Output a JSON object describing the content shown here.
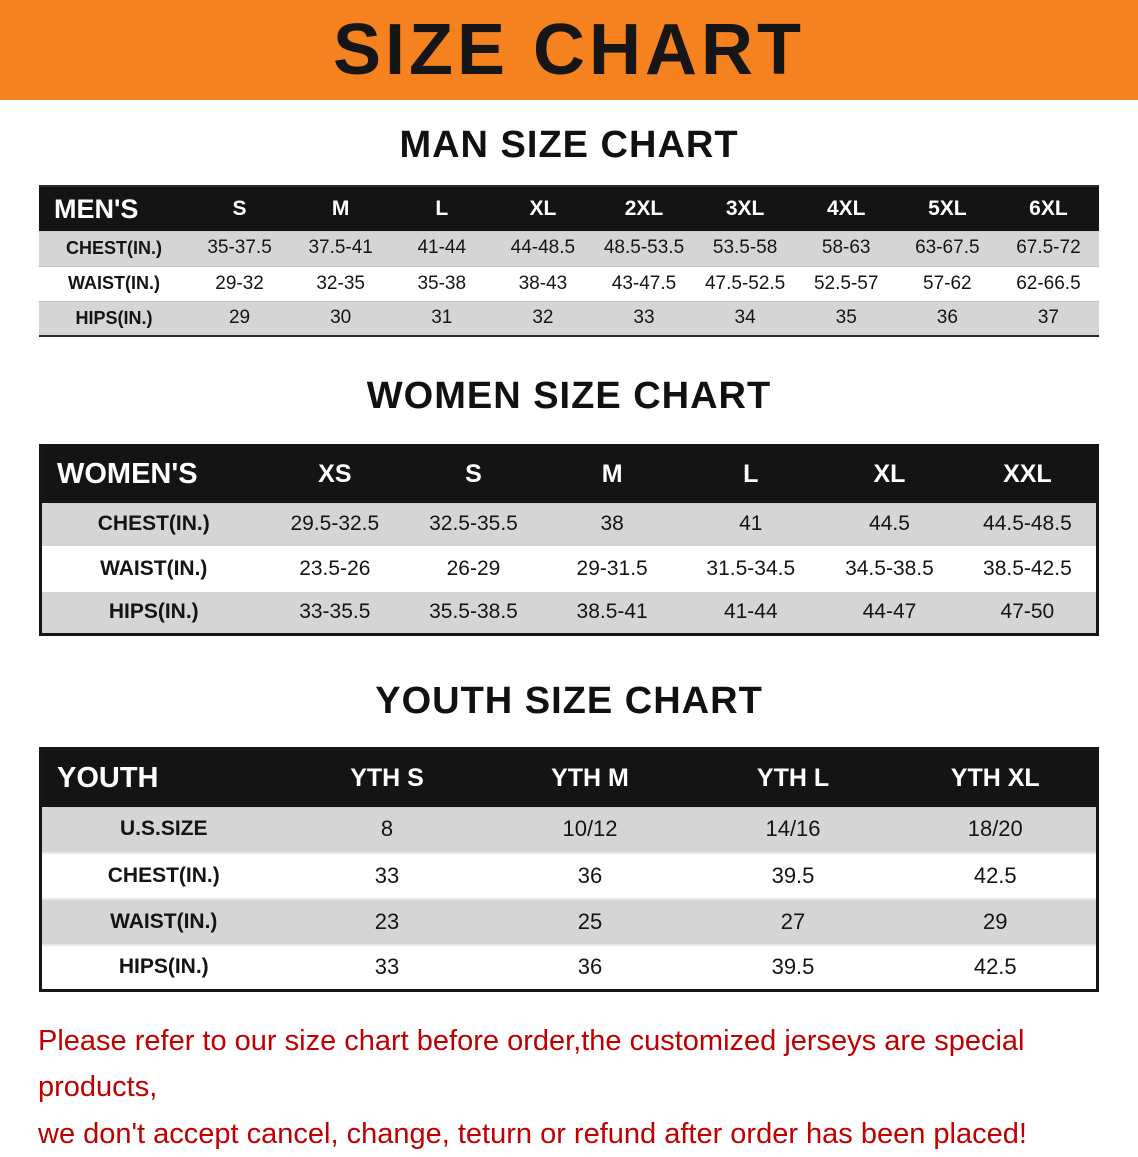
{
  "banner": {
    "title": "SIZE CHART",
    "bg_color": "#F6821F",
    "text_color": "#161616"
  },
  "sections": {
    "men": {
      "title": "MAN SIZE CHART",
      "table": {
        "header": [
          "MEN'S",
          "S",
          "M",
          "L",
          "XL",
          "2XL",
          "3XL",
          "4XL",
          "5XL",
          "6XL"
        ],
        "rows": [
          [
            "CHEST(IN.)",
            "35-37.5",
            "37.5-41",
            "41-44",
            "44-48.5",
            "48.5-53.5",
            "53.5-58",
            "58-63",
            "63-67.5",
            "67.5-72"
          ],
          [
            "WAIST(IN.)",
            "29-32",
            "32-35",
            "35-38",
            "38-43",
            "43-47.5",
            "47.5-52.5",
            "52.5-57",
            "57-62",
            "62-66.5"
          ],
          [
            "HIPS(IN.)",
            "29",
            "30",
            "31",
            "32",
            "33",
            "34",
            "35",
            "36",
            "37"
          ]
        ]
      }
    },
    "women": {
      "title": "WOMEN SIZE CHART",
      "table": {
        "header": [
          "WOMEN'S",
          "XS",
          "S",
          "M",
          "L",
          "XL",
          "XXL"
        ],
        "rows": [
          [
            "CHEST(IN.)",
            "29.5-32.5",
            "32.5-35.5",
            "38",
            "41",
            "44.5",
            "44.5-48.5"
          ],
          [
            "WAIST(IN.)",
            "23.5-26",
            "26-29",
            "29-31.5",
            "31.5-34.5",
            "34.5-38.5",
            "38.5-42.5"
          ],
          [
            "HIPS(IN.)",
            "33-35.5",
            "35.5-38.5",
            "38.5-41",
            "41-44",
            "44-47",
            "47-50"
          ]
        ]
      }
    },
    "youth": {
      "title": "YOUTH SIZE CHART",
      "table": {
        "header": [
          "YOUTH",
          "YTH S",
          "YTH M",
          "YTH L",
          "YTH XL"
        ],
        "rows": [
          [
            "U.S.SIZE",
            "8",
            "10/12",
            "14/16",
            "18/20"
          ],
          [
            "CHEST(IN.)",
            "33",
            "36",
            "39.5",
            "42.5"
          ],
          [
            "WAIST(IN.)",
            "23",
            "25",
            "27",
            "29"
          ],
          [
            "HIPS(IN.)",
            "33",
            "36",
            "39.5",
            "42.5"
          ]
        ]
      }
    }
  },
  "disclaimer": {
    "line1": "Please refer to our size chart before order,the customized jerseys are special products,",
    "line2": "we don't accept cancel, change, teturn or refund after order has been placed!",
    "color": "#C00000"
  },
  "colors": {
    "header_bg": "#141414",
    "stripe": "#D5D5D5",
    "banner_orange": "#F6821F",
    "disclaimer_red": "#C00000"
  }
}
